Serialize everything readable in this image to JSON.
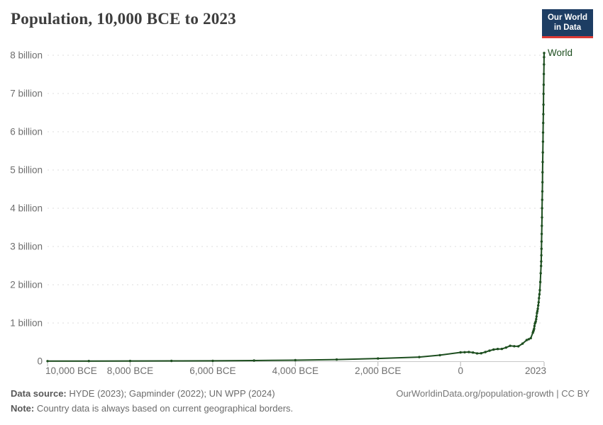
{
  "header": {
    "title": "Population, 10,000 BCE to 2023",
    "logo": {
      "line1": "Our World",
      "line2": "in Data",
      "bg_color": "#1d3d63",
      "accent_color": "#dc3a35",
      "text_color": "#ffffff"
    }
  },
  "chart_data": {
    "type": "line",
    "title": "Population, 10,000 BCE to 2023",
    "xlabel": "",
    "ylabel": "",
    "unit": "billion people",
    "xlim": [
      -10000,
      2023
    ],
    "ylim": [
      0,
      8.3
    ],
    "grid": "horizontal-dashed",
    "legend_position": "end-of-line-label",
    "colors": {
      "line": "#1d4e1f",
      "grid": "#dedede",
      "baseline": "#c8c8c8",
      "tick": "#b5b5b5",
      "axis_text": "#6e6e6e"
    },
    "y_ticks": [
      {
        "value": 0,
        "label": "0"
      },
      {
        "value": 1,
        "label": "1 billion"
      },
      {
        "value": 2,
        "label": "2 billion"
      },
      {
        "value": 3,
        "label": "3 billion"
      },
      {
        "value": 4,
        "label": "4 billion"
      },
      {
        "value": 5,
        "label": "5 billion"
      },
      {
        "value": 6,
        "label": "6 billion"
      },
      {
        "value": 7,
        "label": "7 billion"
      },
      {
        "value": 8,
        "label": "8 billion"
      }
    ],
    "x_ticks": [
      {
        "value": -10000,
        "label": "10,000 BCE"
      },
      {
        "value": -8000,
        "label": "8,000 BCE"
      },
      {
        "value": -6000,
        "label": "6,000 BCE"
      },
      {
        "value": -4000,
        "label": "4,000 BCE"
      },
      {
        "value": -2000,
        "label": "2,000 BCE"
      },
      {
        "value": 0,
        "label": "0"
      },
      {
        "value": 2023,
        "label": "2023"
      }
    ],
    "series": [
      {
        "name": "World",
        "color": "#1d4e1f",
        "points": [
          [
            -10000,
            0.0044
          ],
          [
            -9000,
            0.0056
          ],
          [
            -8000,
            0.0073
          ],
          [
            -7000,
            0.0094
          ],
          [
            -6000,
            0.012
          ],
          [
            -5000,
            0.019
          ],
          [
            -4000,
            0.028
          ],
          [
            -3000,
            0.044
          ],
          [
            -2000,
            0.072
          ],
          [
            -1000,
            0.11
          ],
          [
            -500,
            0.16
          ],
          [
            0,
            0.232
          ],
          [
            100,
            0.236
          ],
          [
            200,
            0.241
          ],
          [
            300,
            0.227
          ],
          [
            400,
            0.206
          ],
          [
            500,
            0.21
          ],
          [
            600,
            0.241
          ],
          [
            700,
            0.275
          ],
          [
            800,
            0.305
          ],
          [
            900,
            0.32
          ],
          [
            1000,
            0.323
          ],
          [
            1100,
            0.357
          ],
          [
            1200,
            0.404
          ],
          [
            1300,
            0.392
          ],
          [
            1400,
            0.39
          ],
          [
            1500,
            0.461
          ],
          [
            1600,
            0.554
          ],
          [
            1650,
            0.576
          ],
          [
            1700,
            0.603
          ],
          [
            1750,
            0.746
          ],
          [
            1760,
            0.78
          ],
          [
            1770,
            0.812
          ],
          [
            1780,
            0.85
          ],
          [
            1790,
            0.92
          ],
          [
            1800,
            0.985
          ],
          [
            1810,
            1.01
          ],
          [
            1820,
            1.04
          ],
          [
            1830,
            1.1
          ],
          [
            1840,
            1.17
          ],
          [
            1850,
            1.26
          ],
          [
            1860,
            1.31
          ],
          [
            1870,
            1.37
          ],
          [
            1880,
            1.46
          ],
          [
            1890,
            1.54
          ],
          [
            1900,
            1.65
          ],
          [
            1910,
            1.75
          ],
          [
            1920,
            1.86
          ],
          [
            1930,
            2.07
          ],
          [
            1940,
            2.3
          ],
          [
            1950,
            2.49
          ],
          [
            1953,
            2.61
          ],
          [
            1956,
            2.77
          ],
          [
            1959,
            2.94
          ],
          [
            1962,
            3.13
          ],
          [
            1965,
            3.33
          ],
          [
            1968,
            3.54
          ],
          [
            1971,
            3.76
          ],
          [
            1974,
            4.0
          ],
          [
            1977,
            4.22
          ],
          [
            1980,
            4.44
          ],
          [
            1983,
            4.68
          ],
          [
            1986,
            4.94
          ],
          [
            1989,
            5.21
          ],
          [
            1992,
            5.46
          ],
          [
            1995,
            5.74
          ],
          [
            1998,
            5.98
          ],
          [
            2001,
            6.23
          ],
          [
            2004,
            6.46
          ],
          [
            2007,
            6.71
          ],
          [
            2010,
            6.99
          ],
          [
            2013,
            7.23
          ],
          [
            2016,
            7.51
          ],
          [
            2019,
            7.76
          ],
          [
            2021,
            7.95
          ],
          [
            2023,
            8.06
          ]
        ]
      }
    ]
  },
  "footer": {
    "source_label": "Data source:",
    "source_text": " HYDE (2023); Gapminder (2022); UN WPP (2024)",
    "note_label": "Note:",
    "note_text": " Country data is always based on current geographical borders.",
    "link": "OurWorldinData.org/population-growth | CC BY"
  }
}
